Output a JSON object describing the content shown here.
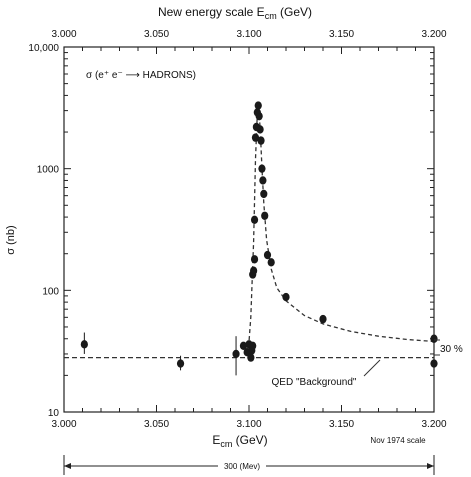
{
  "chart_data": {
    "type": "scatter",
    "top_title": "New energy scale  E",
    "top_title_sub": "cm",
    "top_title_unit": " (GeV)",
    "top_ticks": [
      "3.000",
      "3.050",
      "3.100",
      "3.150",
      "3.200"
    ],
    "xlabel": "E",
    "xlabel_sub": "cm",
    "xlabel_unit": "  (GeV)",
    "xlim": [
      3.0,
      3.2
    ],
    "x_ticks": [
      3.0,
      3.05,
      3.1,
      3.15,
      3.2
    ],
    "x_tick_labels": [
      "3.000",
      "3.050",
      "3.100",
      "3.150",
      "3.200"
    ],
    "ylabel": "σ (nb)",
    "ylim": [
      10,
      10000
    ],
    "y_scale": "log",
    "y_ticks": [
      10,
      100,
      1000,
      10000
    ],
    "y_tick_labels": [
      "10",
      "100",
      "1000",
      "10,000"
    ],
    "process_label": "σ (e⁺ e⁻ ⟶ HADRONS)",
    "background_label": "QED \"Background\"",
    "percent_label": "30 %",
    "scale_note": "Nov  1974 scale",
    "range_label": "300  (Mev)",
    "series": [
      {
        "points": [
          {
            "x": 3.011,
            "y": 36,
            "lo": 30,
            "hi": 45
          },
          {
            "x": 3.063,
            "y": 25,
            "lo": 22,
            "hi": 29
          },
          {
            "x": 3.093,
            "y": 30,
            "lo": 20,
            "hi": 42
          },
          {
            "x": 3.097,
            "y": 35
          },
          {
            "x": 3.099,
            "y": 31
          },
          {
            "x": 3.1,
            "y": 36
          },
          {
            "x": 3.101,
            "y": 28
          },
          {
            "x": 3.1015,
            "y": 32
          },
          {
            "x": 3.102,
            "y": 35
          },
          {
            "x": 3.102,
            "y": 135
          },
          {
            "x": 3.1025,
            "y": 145
          },
          {
            "x": 3.103,
            "y": 180
          },
          {
            "x": 3.103,
            "y": 380
          },
          {
            "x": 3.1035,
            "y": 1800
          },
          {
            "x": 3.104,
            "y": 2200
          },
          {
            "x": 3.1045,
            "y": 2900
          },
          {
            "x": 3.105,
            "y": 3300
          },
          {
            "x": 3.1055,
            "y": 2700
          },
          {
            "x": 3.106,
            "y": 2100
          },
          {
            "x": 3.1065,
            "y": 1700
          },
          {
            "x": 3.107,
            "y": 1000
          },
          {
            "x": 3.1075,
            "y": 800
          },
          {
            "x": 3.108,
            "y": 620
          },
          {
            "x": 3.1085,
            "y": 410
          },
          {
            "x": 3.11,
            "y": 195
          },
          {
            "x": 3.112,
            "y": 170
          },
          {
            "x": 3.12,
            "y": 88
          },
          {
            "x": 3.14,
            "y": 58
          },
          {
            "x": 3.2,
            "y": 40
          },
          {
            "x": 3.2,
            "y": 25
          }
        ]
      }
    ],
    "fit_curve": [
      [
        3.0995,
        30
      ],
      [
        3.101,
        60
      ],
      [
        3.1025,
        250
      ],
      [
        3.1035,
        1200
      ],
      [
        3.1045,
        2800
      ],
      [
        3.1052,
        3100
      ],
      [
        3.106,
        2200
      ],
      [
        3.107,
        1000
      ],
      [
        3.108,
        520
      ],
      [
        3.1095,
        260
      ],
      [
        3.112,
        150
      ],
      [
        3.115,
        105
      ],
      [
        3.12,
        82
      ],
      [
        3.13,
        62
      ],
      [
        3.14,
        53
      ],
      [
        3.155,
        46
      ],
      [
        3.17,
        42
      ],
      [
        3.185,
        39.5
      ],
      [
        3.2,
        38
      ]
    ],
    "background_level": 28
  }
}
